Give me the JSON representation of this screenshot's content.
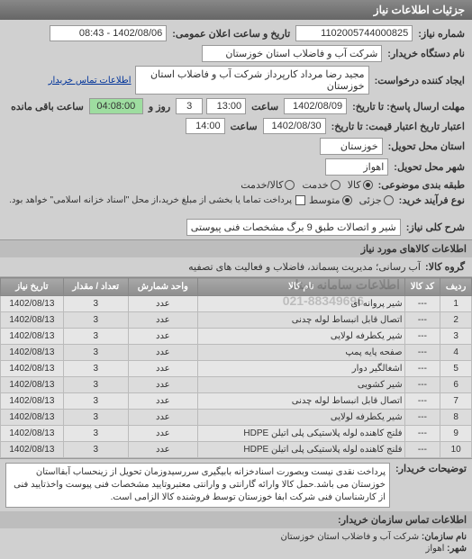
{
  "panel_title": "جزئیات اطلاعات نیاز",
  "header": {
    "req_number_label": "شماره نیاز:",
    "req_number": "1102005744000825",
    "announce_label": "تاریخ و ساعت اعلان عمومی:",
    "announce_value": "1402/08/06 - 08:43",
    "buyer_label": "نام دستگاه خریدار:",
    "buyer": "شرکت آب و فاضلاب استان خوزستان",
    "requester_label": "ایجاد کننده درخواست:",
    "requester": "مجید رضا مرداد کارپرداز شرکت آب و فاضلاب استان خوزستان",
    "contact_link": "اطلاعات تماس خریدار",
    "deadline_label": "مهلت ارسال پاسخ: تا تاریخ:",
    "deadline_date": "1402/08/09",
    "time_label": "ساعت",
    "deadline_time": "13:00",
    "remain_days": "3",
    "remain_days_label": "روز و",
    "remain_time": "04:08:00",
    "remain_suffix": "ساعت باقی مانده",
    "validity_label": "اعتبار تاریخ اعتبار قیمت: تا تاریخ:",
    "validity_date": "1402/08/30",
    "validity_time": "14:00",
    "delivery_province_label": "استان محل تحویل:",
    "delivery_province": "خوزستان",
    "delivery_city_label": "شهر محل تحویل:",
    "delivery_city": "اهواز",
    "packing_label": "طبقه بندی موضوعی:",
    "packing_options": {
      "goods": "کالا",
      "service": "خدمت",
      "both": "کالا/خدمت"
    },
    "packing_selected": "goods",
    "delivery_type_label": "نوع فرآیند خرید:",
    "delivery_options": {
      "low": "جزئی",
      "mid": "متوسط"
    },
    "delivery_selected": "mid",
    "note": "پرداخت تماما یا بخشی از مبلغ خرید،از محل \"اسناد خزانه اسلامی\" خواهد بود.",
    "checkbox_checked": false
  },
  "need_title_label": "شرح کلی نیاز:",
  "need_title": "شیر و اتصالات طبق 9 برگ مشخصات فنی پیوستی",
  "goods_section": "اطلاعات کالاهای مورد نیاز",
  "category_label": "گروه کالا:",
  "category": "آب رسانی؛ مدیریت پسماند، فاضلاب و فعالیت های تصفیه",
  "watermark1": "اطلاعات سامانه ستاد",
  "watermark2": "021-88349696",
  "table": {
    "columns": [
      "ردیف",
      "کد کالا",
      "نام کالا",
      "واحد شمارش",
      "تعداد / مقدار",
      "تاریخ نیاز"
    ],
    "col_keys": [
      "idx",
      "code",
      "name",
      "unit",
      "qty",
      "date"
    ],
    "rows": [
      {
        "idx": "1",
        "code": "---",
        "name": "شیر پروانه ای",
        "unit": "عدد",
        "qty": "3",
        "date": "1402/08/13"
      },
      {
        "idx": "2",
        "code": "---",
        "name": "اتصال قابل انبساط لوله چدنی",
        "unit": "عدد",
        "qty": "3",
        "date": "1402/08/13"
      },
      {
        "idx": "3",
        "code": "---",
        "name": "شیر یکطرفه لولایی",
        "unit": "عدد",
        "qty": "3",
        "date": "1402/08/13"
      },
      {
        "idx": "4",
        "code": "---",
        "name": "صفحه پایه پمپ",
        "unit": "عدد",
        "qty": "3",
        "date": "1402/08/13"
      },
      {
        "idx": "5",
        "code": "---",
        "name": "اشغالگیر دوار",
        "unit": "عدد",
        "qty": "3",
        "date": "1402/08/13"
      },
      {
        "idx": "6",
        "code": "---",
        "name": "شیر کشویی",
        "unit": "عدد",
        "qty": "3",
        "date": "1402/08/13"
      },
      {
        "idx": "7",
        "code": "---",
        "name": "اتصال قابل انبساط لوله چدنی",
        "unit": "عدد",
        "qty": "3",
        "date": "1402/08/13"
      },
      {
        "idx": "8",
        "code": "---",
        "name": "شیر یکطرفه لولایی",
        "unit": "عدد",
        "qty": "3",
        "date": "1402/08/13"
      },
      {
        "idx": "9",
        "code": "---",
        "name": "فلنج کاهنده لوله پلاستیکی پلی اتیلن HDPE",
        "unit": "عدد",
        "qty": "3",
        "date": "1402/08/13"
      },
      {
        "idx": "10",
        "code": "---",
        "name": "فلنج کاهنده لوله پلاستیکی پلی اتیلن HDPE",
        "unit": "عدد",
        "qty": "3",
        "date": "1402/08/13"
      }
    ]
  },
  "buyer_explain_label": "توضیحات خریدار:",
  "buyer_explain": "پرداخت نقدی نیست وبصورت اسنادخزانه بابیگیری سررسیدوزمان تحویل از زینحساب آبفااستان خوزستان می باشد.حمل کالا وارائه گارانتی و وارانتی معتبروتایید مشخصات فنی پیوست واخذتایید فنی از کارشناسان فنی شرکت ابفا خوزستان توسط فروشنده کالا الزامی است.",
  "contact_section": "اطلاعات تماس سازمان خریدار:",
  "contact": {
    "org_label": "نام سازمان:",
    "org": "شرکت آب و فاضلاب استان خوزستان",
    "city_label": "شهر:",
    "city": "اهواز",
    "reg_label": ""
  },
  "colors": {
    "header_bg": "#777777",
    "panel_bg": "#d0d0d0",
    "field_bg": "#ffffff",
    "remain_bg": "#9edda0",
    "border": "#999999"
  }
}
